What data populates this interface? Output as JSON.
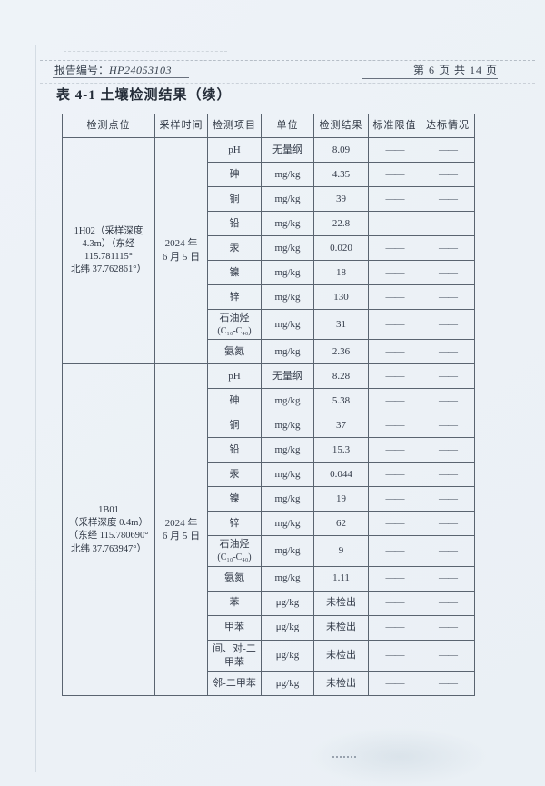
{
  "header": {
    "report_label": "报告编号：",
    "report_no": "HP24053103",
    "page_info": "第 6 页 共 14 页",
    "title": "表 4-1 土壤检测结果（续）"
  },
  "table": {
    "headers": [
      "检测点位",
      "采样时间",
      "检测项目",
      "单位",
      "检测结果",
      "标准限值",
      "达标情况"
    ],
    "dash": "——",
    "blocks": [
      {
        "point_lines": [
          "1H02（采样深度",
          "4.3m）（东经",
          "115.781115°",
          "北纬 37.762861°）"
        ],
        "time_lines": [
          "2024 年",
          "6 月 5 日"
        ],
        "rows": [
          {
            "item": "pH",
            "unit": "无量纲",
            "result": "8.09"
          },
          {
            "item": "砷",
            "unit": "mg/kg",
            "result": "4.35"
          },
          {
            "item": "铜",
            "unit": "mg/kg",
            "result": "39"
          },
          {
            "item": "铅",
            "unit": "mg/kg",
            "result": "22.8"
          },
          {
            "item": "汞",
            "unit": "mg/kg",
            "result": "0.020"
          },
          {
            "item": "镍",
            "unit": "mg/kg",
            "result": "18"
          },
          {
            "item": "锌",
            "unit": "mg/kg",
            "result": "130"
          },
          {
            "item": "石油烃",
            "item_sub": "(C₁₀-C₄₀)",
            "unit": "mg/kg",
            "result": "31"
          },
          {
            "item": "氨氮",
            "unit": "mg/kg",
            "result": "2.36"
          }
        ]
      },
      {
        "point_lines": [
          "1B01",
          "（采样深度 0.4m）",
          "（东经 115.780690°",
          "北纬 37.763947°）"
        ],
        "time_lines": [
          "2024 年",
          "6 月 5 日"
        ],
        "rows": [
          {
            "item": "pH",
            "unit": "无量纲",
            "result": "8.28"
          },
          {
            "item": "砷",
            "unit": "mg/kg",
            "result": "5.38"
          },
          {
            "item": "铜",
            "unit": "mg/kg",
            "result": "37"
          },
          {
            "item": "铅",
            "unit": "mg/kg",
            "result": "15.3"
          },
          {
            "item": "汞",
            "unit": "mg/kg",
            "result": "0.044"
          },
          {
            "item": "镍",
            "unit": "mg/kg",
            "result": "19"
          },
          {
            "item": "锌",
            "unit": "mg/kg",
            "result": "62"
          },
          {
            "item": "石油烃",
            "item_sub": "(C₁₀-C₄₀)",
            "unit": "mg/kg",
            "result": "9"
          },
          {
            "item": "氨氮",
            "unit": "mg/kg",
            "result": "1.11"
          },
          {
            "item": "苯",
            "unit": "μg/kg",
            "result": "未检出"
          },
          {
            "item": "甲苯",
            "unit": "μg/kg",
            "result": "未检出"
          },
          {
            "item": "间、对-二甲苯",
            "unit": "μg/kg",
            "result": "未检出"
          },
          {
            "item": "邻-二甲苯",
            "unit": "μg/kg",
            "result": "未检出"
          }
        ]
      }
    ]
  },
  "colors": {
    "page_bg": "#eef3f8",
    "border": "#5a6470",
    "text": "#343c4a"
  }
}
